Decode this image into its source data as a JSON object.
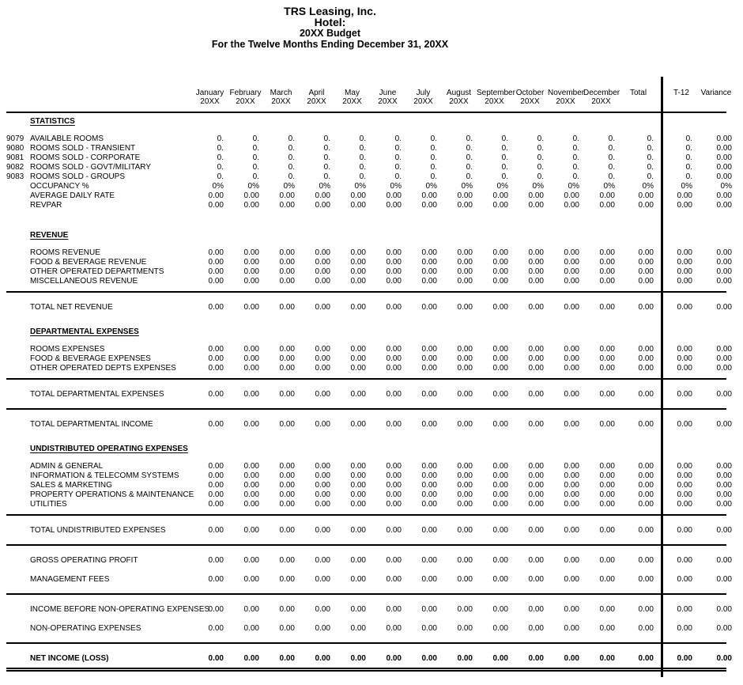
{
  "title": {
    "company": "TRS Leasing, Inc.",
    "property": "Hotel:",
    "report": "20XX Budget",
    "period": "For the Twelve Months Ending December 31, 20XX"
  },
  "columns": [
    {
      "l1": "January",
      "l2": "20XX"
    },
    {
      "l1": "February",
      "l2": "20XX"
    },
    {
      "l1": "March",
      "l2": "20XX"
    },
    {
      "l1": "April",
      "l2": "20XX"
    },
    {
      "l1": "May",
      "l2": "20XX"
    },
    {
      "l1": "June",
      "l2": "20XX"
    },
    {
      "l1": "July",
      "l2": "20XX"
    },
    {
      "l1": "August",
      "l2": "20XX"
    },
    {
      "l1": "September",
      "l2": "20XX"
    },
    {
      "l1": "October",
      "l2": "20XX"
    },
    {
      "l1": "November",
      "l2": "20XX"
    },
    {
      "l1": "December",
      "l2": "20XX"
    },
    {
      "l1": "Total",
      "l2": ""
    },
    {
      "l1": "T-12",
      "l2": ""
    },
    {
      "l1": "Variance",
      "l2": ""
    }
  ],
  "rows": [
    {
      "type": "section",
      "label": "STATISTICS"
    },
    {
      "type": "blank-sm"
    },
    {
      "type": "data",
      "code": "9079",
      "label": "AVAILABLE ROOMS",
      "cells": [
        "0.",
        "0.",
        "0.",
        "0.",
        "0.",
        "0.",
        "0.",
        "0.",
        "0.",
        "0.",
        "0.",
        "0.",
        "0.",
        "0.",
        "0.00"
      ]
    },
    {
      "type": "data",
      "code": "9080",
      "label": "ROOMS SOLD - TRANSIENT",
      "cells": [
        "0.",
        "0.",
        "0.",
        "0.",
        "0.",
        "0.",
        "0.",
        "0.",
        "0.",
        "0.",
        "0.",
        "0.",
        "0.",
        "0.",
        "0.00"
      ]
    },
    {
      "type": "data",
      "code": "9081",
      "label": "ROOMS SOLD - CORPORATE",
      "cells": [
        "0.",
        "0.",
        "0.",
        "0.",
        "0.",
        "0.",
        "0.",
        "0.",
        "0.",
        "0.",
        "0.",
        "0.",
        "0.",
        "0.",
        "0.00"
      ]
    },
    {
      "type": "data",
      "code": "9082",
      "label": "ROOMS SOLD - GOVT/MILITARY",
      "cells": [
        "0.",
        "0.",
        "0.",
        "0.",
        "0.",
        "0.",
        "0.",
        "0.",
        "0.",
        "0.",
        "0.",
        "0.",
        "0.",
        "0.",
        "0.00"
      ]
    },
    {
      "type": "data",
      "code": "9083",
      "label": "ROOMS SOLD - GROUPS",
      "cells": [
        "0.",
        "0.",
        "0.",
        "0.",
        "0.",
        "0.",
        "0.",
        "0.",
        "0.",
        "0.",
        "0.",
        "0.",
        "0.",
        "0.",
        "0.00"
      ]
    },
    {
      "type": "data",
      "code": "",
      "label": "OCCUPANCY %",
      "cells": [
        "0%",
        "0%",
        "0%",
        "0%",
        "0%",
        "0%",
        "0%",
        "0%",
        "0%",
        "0%",
        "0%",
        "0%",
        "0%",
        "0%",
        "0%"
      ]
    },
    {
      "type": "data",
      "code": "",
      "label": "AVERAGE DAILY RATE",
      "cells": [
        "0.00",
        "0.00",
        "0.00",
        "0.00",
        "0.00",
        "0.00",
        "0.00",
        "0.00",
        "0.00",
        "0.00",
        "0.00",
        "0.00",
        "0.00",
        "0.00",
        "0.00"
      ]
    },
    {
      "type": "data",
      "code": "",
      "label": "REVPAR",
      "cells": [
        "0.00",
        "0.00",
        "0.00",
        "0.00",
        "0.00",
        "0.00",
        "0.00",
        "0.00",
        "0.00",
        "0.00",
        "0.00",
        "0.00",
        "0.00",
        "0.00",
        "0.00"
      ]
    },
    {
      "type": "blank"
    },
    {
      "type": "blank"
    },
    {
      "type": "section",
      "label": "REVENUE"
    },
    {
      "type": "blank-sm"
    },
    {
      "type": "data",
      "code": "",
      "label": "ROOMS REVENUE",
      "cells": [
        "0.00",
        "0.00",
        "0.00",
        "0.00",
        "0.00",
        "0.00",
        "0.00",
        "0.00",
        "0.00",
        "0.00",
        "0.00",
        "0.00",
        "0.00",
        "0.00",
        "0.00"
      ]
    },
    {
      "type": "data",
      "code": "",
      "label": "FOOD & BEVERAGE REVENUE",
      "cells": [
        "0.00",
        "0.00",
        "0.00",
        "0.00",
        "0.00",
        "0.00",
        "0.00",
        "0.00",
        "0.00",
        "0.00",
        "0.00",
        "0.00",
        "0.00",
        "0.00",
        "0.00"
      ]
    },
    {
      "type": "data",
      "code": "",
      "label": "OTHER OPERATED DEPARTMENTS",
      "cells": [
        "0.00",
        "0.00",
        "0.00",
        "0.00",
        "0.00",
        "0.00",
        "0.00",
        "0.00",
        "0.00",
        "0.00",
        "0.00",
        "0.00",
        "0.00",
        "0.00",
        "0.00"
      ]
    },
    {
      "type": "data",
      "code": "",
      "label": "MISCELLANEOUS REVENUE",
      "cells": [
        "0.00",
        "0.00",
        "0.00",
        "0.00",
        "0.00",
        "0.00",
        "0.00",
        "0.00",
        "0.00",
        "0.00",
        "0.00",
        "0.00",
        "0.00",
        "0.00",
        "0.00"
      ]
    },
    {
      "type": "rule"
    },
    {
      "type": "total",
      "code": "",
      "label": "TOTAL NET REVENUE",
      "cells": [
        "0.00",
        "0.00",
        "0.00",
        "0.00",
        "0.00",
        "0.00",
        "0.00",
        "0.00",
        "0.00",
        "0.00",
        "0.00",
        "0.00",
        "0.00",
        "0.00",
        "0.00"
      ]
    },
    {
      "type": "blank"
    },
    {
      "type": "section",
      "label": "DEPARTMENTAL EXPENSES"
    },
    {
      "type": "blank-sm"
    },
    {
      "type": "data",
      "code": "",
      "label": "ROOMS EXPENSES",
      "cells": [
        "0.00",
        "0.00",
        "0.00",
        "0.00",
        "0.00",
        "0.00",
        "0.00",
        "0.00",
        "0.00",
        "0.00",
        "0.00",
        "0.00",
        "0.00",
        "0.00",
        "0.00"
      ]
    },
    {
      "type": "data",
      "code": "",
      "label": "FOOD & BEVERAGE EXPENSES",
      "cells": [
        "0.00",
        "0.00",
        "0.00",
        "0.00",
        "0.00",
        "0.00",
        "0.00",
        "0.00",
        "0.00",
        "0.00",
        "0.00",
        "0.00",
        "0.00",
        "0.00",
        "0.00"
      ]
    },
    {
      "type": "data",
      "code": "",
      "label": "OTHER OPERATED DEPTS EXPENSES",
      "cells": [
        "0.00",
        "0.00",
        "0.00",
        "0.00",
        "0.00",
        "0.00",
        "0.00",
        "0.00",
        "0.00",
        "0.00",
        "0.00",
        "0.00",
        "0.00",
        "0.00",
        "0.00"
      ]
    },
    {
      "type": "rule"
    },
    {
      "type": "total",
      "code": "",
      "label": "TOTAL DEPARTMENTAL EXPENSES",
      "cells": [
        "0.00",
        "0.00",
        "0.00",
        "0.00",
        "0.00",
        "0.00",
        "0.00",
        "0.00",
        "0.00",
        "0.00",
        "0.00",
        "0.00",
        "0.00",
        "0.00",
        "0.00"
      ]
    },
    {
      "type": "rule"
    },
    {
      "type": "total",
      "code": "",
      "label": "TOTAL DEPARTMENTAL INCOME",
      "cells": [
        "0.00",
        "0.00",
        "0.00",
        "0.00",
        "0.00",
        "0.00",
        "0.00",
        "0.00",
        "0.00",
        "0.00",
        "0.00",
        "0.00",
        "0.00",
        "0.00",
        "0.00"
      ]
    },
    {
      "type": "blank"
    },
    {
      "type": "section",
      "label": "UNDISTRIBUTED OPERATING EXPENSES"
    },
    {
      "type": "blank-sm"
    },
    {
      "type": "data",
      "code": "",
      "label": "ADMIN & GENERAL",
      "cells": [
        "0.00",
        "0.00",
        "0.00",
        "0.00",
        "0.00",
        "0.00",
        "0.00",
        "0.00",
        "0.00",
        "0.00",
        "0.00",
        "0.00",
        "0.00",
        "0.00",
        "0.00"
      ]
    },
    {
      "type": "data",
      "code": "",
      "label": "INFORMATION & TELECOMM SYSTEMS",
      "cells": [
        "0.00",
        "0.00",
        "0.00",
        "0.00",
        "0.00",
        "0.00",
        "0.00",
        "0.00",
        "0.00",
        "0.00",
        "0.00",
        "0.00",
        "0.00",
        "0.00",
        "0.00"
      ]
    },
    {
      "type": "data",
      "code": "",
      "label": "SALES & MARKETING",
      "cells": [
        "0.00",
        "0.00",
        "0.00",
        "0.00",
        "0.00",
        "0.00",
        "0.00",
        "0.00",
        "0.00",
        "0.00",
        "0.00",
        "0.00",
        "0.00",
        "0.00",
        "0.00"
      ]
    },
    {
      "type": "data",
      "code": "",
      "label": "PROPERTY OPERATIONS & MAINTENANCE",
      "cells": [
        "0.00",
        "0.00",
        "0.00",
        "0.00",
        "0.00",
        "0.00",
        "0.00",
        "0.00",
        "0.00",
        "0.00",
        "0.00",
        "0.00",
        "0.00",
        "0.00",
        "0.00"
      ]
    },
    {
      "type": "data",
      "code": "",
      "label": "UTILITIES",
      "cells": [
        "0.00",
        "0.00",
        "0.00",
        "0.00",
        "0.00",
        "0.00",
        "0.00",
        "0.00",
        "0.00",
        "0.00",
        "0.00",
        "0.00",
        "0.00",
        "0.00",
        "0.00"
      ]
    },
    {
      "type": "rule"
    },
    {
      "type": "total",
      "code": "",
      "label": "TOTAL UNDISTRIBUTED EXPENSES",
      "cells": [
        "0.00",
        "0.00",
        "0.00",
        "0.00",
        "0.00",
        "0.00",
        "0.00",
        "0.00",
        "0.00",
        "0.00",
        "0.00",
        "0.00",
        "0.00",
        "0.00",
        "0.00"
      ]
    },
    {
      "type": "rule"
    },
    {
      "type": "total",
      "code": "",
      "label": "GROSS OPERATING PROFIT",
      "cells": [
        "0.00",
        "0.00",
        "0.00",
        "0.00",
        "0.00",
        "0.00",
        "0.00",
        "0.00",
        "0.00",
        "0.00",
        "0.00",
        "0.00",
        "0.00",
        "0.00",
        "0.00"
      ]
    },
    {
      "type": "total",
      "code": "",
      "label": "MANAGEMENT FEES",
      "cells": [
        "0.00",
        "0.00",
        "0.00",
        "0.00",
        "0.00",
        "0.00",
        "0.00",
        "0.00",
        "0.00",
        "0.00",
        "0.00",
        "0.00",
        "0.00",
        "0.00",
        "0.00"
      ]
    },
    {
      "type": "rule"
    },
    {
      "type": "total",
      "code": "",
      "label": "INCOME BEFORE NON-OPERATING EXPENSES",
      "cells": [
        "0.00",
        "0.00",
        "0.00",
        "0.00",
        "0.00",
        "0.00",
        "0.00",
        "0.00",
        "0.00",
        "0.00",
        "0.00",
        "0.00",
        "0.00",
        "0.00",
        "0.00"
      ]
    },
    {
      "type": "total",
      "code": "",
      "label": "NON-OPERATING EXPENSES",
      "cells": [
        "0.00",
        "0.00",
        "0.00",
        "0.00",
        "0.00",
        "0.00",
        "0.00",
        "0.00",
        "0.00",
        "0.00",
        "0.00",
        "0.00",
        "0.00",
        "0.00",
        "0.00"
      ]
    },
    {
      "type": "rule"
    },
    {
      "type": "total-bold",
      "code": "",
      "label": "NET INCOME (LOSS)",
      "cells": [
        "0.00",
        "0.00",
        "0.00",
        "0.00",
        "0.00",
        "0.00",
        "0.00",
        "0.00",
        "0.00",
        "0.00",
        "0.00",
        "0.00",
        "0.00",
        "0.00",
        "0.00"
      ]
    },
    {
      "type": "double-rule"
    }
  ]
}
